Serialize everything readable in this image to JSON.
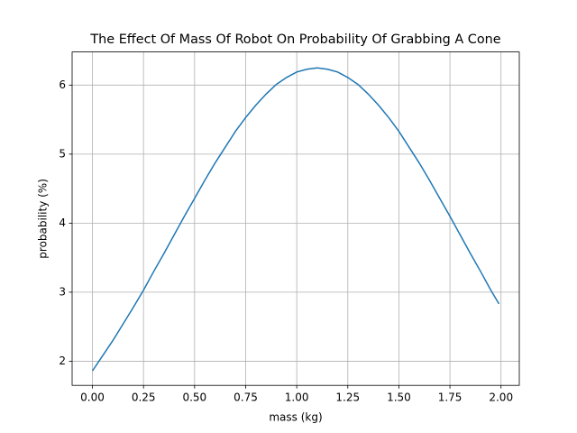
{
  "chart_data": {
    "type": "line",
    "title": "The Effect Of Mass Of Robot On Probability Of Grabbing A Cone",
    "x_label": "mass (kg)",
    "y_label": "probability (%)",
    "x": [
      0,
      0.05,
      0.1,
      0.15,
      0.2,
      0.25,
      0.3,
      0.35,
      0.4,
      0.45,
      0.5,
      0.55,
      0.6,
      0.65,
      0.7,
      0.75,
      0.8,
      0.85,
      0.9,
      0.95,
      1.0,
      1.05,
      1.1,
      1.15,
      1.2,
      1.25,
      1.3,
      1.35,
      1.4,
      1.45,
      1.5,
      1.55,
      1.6,
      1.65,
      1.7,
      1.75,
      1.8,
      1.85,
      1.9,
      1.95,
      1.99
    ],
    "series": [
      {
        "color": "#1f77b4",
        "values": [
          1.86,
          2.08,
          2.3,
          2.54,
          2.78,
          3.03,
          3.3,
          3.56,
          3.83,
          4.1,
          4.36,
          4.62,
          4.87,
          5.1,
          5.33,
          5.53,
          5.71,
          5.87,
          6.01,
          6.11,
          6.19,
          6.23,
          6.25,
          6.23,
          6.19,
          6.11,
          6.01,
          5.87,
          5.71,
          5.53,
          5.33,
          5.1,
          4.87,
          4.62,
          4.36,
          4.1,
          3.83,
          3.56,
          3.3,
          3.03,
          2.83
        ]
      }
    ],
    "xlim": [
      -0.0995,
      2.0895
    ],
    "ylim": [
      1.65,
      6.48
    ],
    "xticks": [
      {
        "value": 0,
        "label": "0.00"
      },
      {
        "value": 0.25,
        "label": "0.25"
      },
      {
        "value": 0.5,
        "label": "0.50"
      },
      {
        "value": 0.75,
        "label": "0.75"
      },
      {
        "value": 1.0,
        "label": "1.00"
      },
      {
        "value": 1.25,
        "label": "1.25"
      },
      {
        "value": 1.5,
        "label": "1.50"
      },
      {
        "value": 1.75,
        "label": "1.75"
      },
      {
        "value": 2.0,
        "label": "2.00"
      }
    ],
    "yticks": [
      2,
      3,
      4,
      5,
      6
    ],
    "grid": true
  }
}
